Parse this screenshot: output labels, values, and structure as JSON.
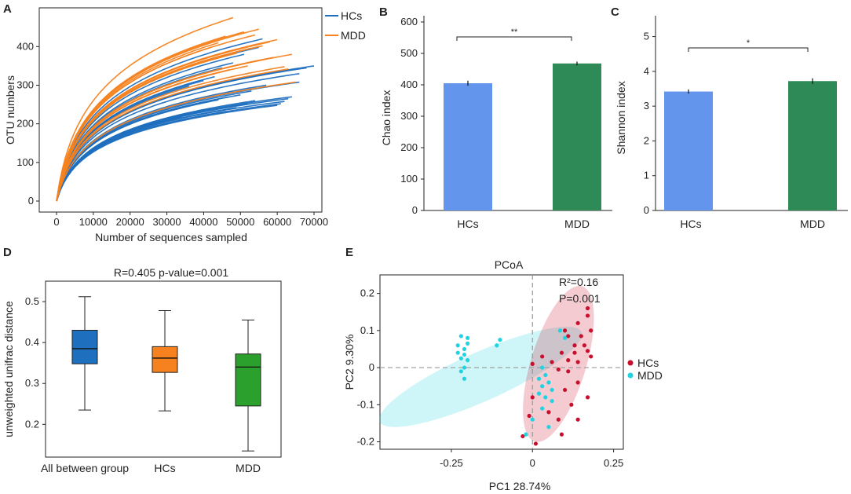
{
  "colors": {
    "hcs_line": "#1f6fbf",
    "mdd_line": "#f5821f",
    "bar_hcs": "#6495ed",
    "bar_mdd": "#2e8b57",
    "box_all": "#1f6fbf",
    "box_hcs": "#f5821f",
    "box_mdd": "#2ca02c",
    "pcoa_hcs": "#c8102e",
    "pcoa_mdd": "#1fd3e0"
  },
  "chart_data": [
    {
      "panel": "A",
      "type": "line",
      "title": "",
      "xlabel": "Number of sequences sampled",
      "ylabel": "OTU numbers",
      "xlim": [
        0,
        70000
      ],
      "ylim": [
        0,
        480
      ],
      "xticks": [
        "0",
        "10000",
        "20000",
        "30000",
        "40000",
        "50000",
        "60000",
        "70000"
      ],
      "yticks": [
        "0",
        "100",
        "200",
        "300",
        "400"
      ],
      "legend": [
        "HCs",
        "MDD"
      ],
      "series": [
        {
          "name": "HCs",
          "curves": [
            {
              "xmax": 70000,
              "ymax": 350
            },
            {
              "xmax": 68000,
              "ymax": 345
            },
            {
              "xmax": 66000,
              "ymax": 330
            },
            {
              "xmax": 66000,
              "ymax": 308
            },
            {
              "xmax": 64000,
              "ymax": 270
            },
            {
              "xmax": 63000,
              "ymax": 265
            },
            {
              "xmax": 62000,
              "ymax": 258
            },
            {
              "xmax": 61000,
              "ymax": 252
            },
            {
              "xmax": 60000,
              "ymax": 248
            },
            {
              "xmax": 58000,
              "ymax": 330
            },
            {
              "xmax": 57000,
              "ymax": 300
            },
            {
              "xmax": 56000,
              "ymax": 420
            },
            {
              "xmax": 55000,
              "ymax": 398
            },
            {
              "xmax": 54000,
              "ymax": 260
            },
            {
              "xmax": 53000,
              "ymax": 285
            },
            {
              "xmax": 52000,
              "ymax": 252
            },
            {
              "xmax": 51000,
              "ymax": 380
            },
            {
              "xmax": 50000,
              "ymax": 275
            },
            {
              "xmax": 49000,
              "ymax": 242
            },
            {
              "xmax": 48000,
              "ymax": 358
            },
            {
              "xmax": 47000,
              "ymax": 270
            },
            {
              "xmax": 46000,
              "ymax": 232
            },
            {
              "xmax": 45000,
              "ymax": 345
            },
            {
              "xmax": 44000,
              "ymax": 262
            },
            {
              "xmax": 43000,
              "ymax": 322
            },
            {
              "xmax": 42000,
              "ymax": 240
            },
            {
              "xmax": 40000,
              "ymax": 312
            },
            {
              "xmax": 38000,
              "ymax": 228
            },
            {
              "xmax": 36000,
              "ymax": 298
            },
            {
              "xmax": 34000,
              "ymax": 218
            }
          ]
        },
        {
          "name": "MDD",
          "curves": [
            {
              "xmax": 65000,
              "ymax": 308
            },
            {
              "xmax": 64000,
              "ymax": 380
            },
            {
              "xmax": 63000,
              "ymax": 342
            },
            {
              "xmax": 62000,
              "ymax": 348
            },
            {
              "xmax": 60000,
              "ymax": 418
            },
            {
              "xmax": 59000,
              "ymax": 372
            },
            {
              "xmax": 58000,
              "ymax": 412
            },
            {
              "xmax": 57000,
              "ymax": 368
            },
            {
              "xmax": 56000,
              "ymax": 402
            },
            {
              "xmax": 55000,
              "ymax": 445
            },
            {
              "xmax": 54000,
              "ymax": 430
            },
            {
              "xmax": 53000,
              "ymax": 396
            },
            {
              "xmax": 52000,
              "ymax": 350
            },
            {
              "xmax": 51000,
              "ymax": 438
            },
            {
              "xmax": 50000,
              "ymax": 395
            },
            {
              "xmax": 49000,
              "ymax": 383
            },
            {
              "xmax": 48000,
              "ymax": 475
            },
            {
              "xmax": 47000,
              "ymax": 340
            },
            {
              "xmax": 46000,
              "ymax": 427
            },
            {
              "xmax": 45000,
              "ymax": 375
            },
            {
              "xmax": 44000,
              "ymax": 410
            },
            {
              "xmax": 43000,
              "ymax": 330
            },
            {
              "xmax": 42000,
              "ymax": 398
            },
            {
              "xmax": 40000,
              "ymax": 362
            },
            {
              "xmax": 38000,
              "ymax": 318
            }
          ]
        }
      ]
    },
    {
      "panel": "B",
      "type": "bar",
      "ylabel": "Chao index",
      "categories": [
        "HCs",
        "MDD"
      ],
      "values": [
        405,
        468
      ],
      "errors": [
        8,
        6
      ],
      "ylim": [
        0,
        620
      ],
      "yticks": [
        "0",
        "100",
        "200",
        "300",
        "400",
        "500",
        "600"
      ],
      "significance": "**"
    },
    {
      "panel": "C",
      "type": "bar",
      "ylabel": "Shannon index",
      "categories": [
        "HCs",
        "MDD"
      ],
      "values": [
        3.42,
        3.72
      ],
      "errors": [
        0.06,
        0.08
      ],
      "ylim": [
        0,
        5.6
      ],
      "yticks": [
        "0",
        "1",
        "2",
        "3",
        "4",
        "5"
      ],
      "significance": "*"
    },
    {
      "panel": "D",
      "type": "box",
      "title": "R=0.405 p-value=0.001",
      "ylabel": "unweighted unifrac distance",
      "categories": [
        "All between group",
        "HCs",
        "MDD"
      ],
      "boxes": [
        {
          "min": 0.235,
          "q1": 0.348,
          "median": 0.385,
          "q3": 0.43,
          "max": 0.512
        },
        {
          "min": 0.233,
          "q1": 0.327,
          "median": 0.362,
          "q3": 0.39,
          "max": 0.478
        },
        {
          "min": 0.135,
          "q1": 0.245,
          "median": 0.34,
          "q3": 0.372,
          "max": 0.455
        }
      ],
      "ylim": [
        0.12,
        0.55
      ],
      "yticks": [
        "0.2",
        "0.3",
        "0.4",
        "0.5"
      ]
    },
    {
      "panel": "E",
      "type": "scatter",
      "title": "PCoA",
      "xlabel": "PC1 28.74%",
      "ylabel": "PC2 9.30%",
      "xlim": [
        -0.47,
        0.28
      ],
      "ylim": [
        -0.22,
        0.25
      ],
      "xticks": [
        "-0.25",
        "0",
        "0.25"
      ],
      "yticks": [
        "-0.2",
        "-0.1",
        "0",
        "0.1",
        "0.2"
      ],
      "annotation": [
        "R²=0.16",
        "P=0.001"
      ],
      "legend": [
        "HCs",
        "MDD"
      ],
      "series": [
        {
          "name": "HCs",
          "points": [
            [
              0.1,
              0.1
            ],
            [
              0.14,
              0.12
            ],
            [
              0.17,
              0.16
            ],
            [
              0.17,
              0.14
            ],
            [
              0.18,
              0.1
            ],
            [
              0.11,
              0.085
            ],
            [
              0.15,
              0.085
            ],
            [
              0.13,
              0.06
            ],
            [
              0.16,
              0.06
            ],
            [
              0.17,
              0.045
            ],
            [
              0.09,
              0.04
            ],
            [
              0.13,
              0.04
            ],
            [
              0.11,
              0.02
            ],
            [
              0.14,
              0.015
            ],
            [
              0.18,
              0.03
            ],
            [
              0.03,
              0.03
            ],
            [
              0.06,
              0.015
            ],
            [
              0.0,
              0.01
            ],
            [
              0.08,
              -0.005
            ],
            [
              0.11,
              -0.01
            ],
            [
              0.14,
              -0.04
            ],
            [
              0.1,
              -0.06
            ],
            [
              0.17,
              -0.08
            ],
            [
              0.12,
              -0.1
            ],
            [
              0.14,
              -0.14
            ],
            [
              0.08,
              -0.14
            ],
            [
              0.0,
              -0.08
            ],
            [
              0.05,
              -0.12
            ],
            [
              0.09,
              -0.18
            ],
            [
              -0.03,
              -0.185
            ],
            [
              0.01,
              -0.205
            ],
            [
              -0.01,
              -0.13
            ]
          ]
        },
        {
          "name": "MDD",
          "points": [
            [
              -0.22,
              0.085
            ],
            [
              -0.2,
              0.08
            ],
            [
              -0.2,
              0.065
            ],
            [
              -0.23,
              0.06
            ],
            [
              -0.21,
              0.05
            ],
            [
              -0.23,
              0.04
            ],
            [
              -0.21,
              0.035
            ],
            [
              -0.22,
              0.025
            ],
            [
              -0.2,
              0.02
            ],
            [
              -0.21,
              0.0
            ],
            [
              -0.22,
              -0.01
            ],
            [
              -0.21,
              -0.03
            ],
            [
              -0.1,
              0.075
            ],
            [
              -0.11,
              0.06
            ],
            [
              0.085,
              0.1
            ],
            [
              0.1,
              0.08
            ],
            [
              0.03,
              0.0
            ],
            [
              0.04,
              -0.02
            ],
            [
              0.02,
              -0.03
            ],
            [
              0.05,
              -0.04
            ],
            [
              0.03,
              -0.05
            ],
            [
              0.06,
              -0.06
            ],
            [
              0.02,
              -0.07
            ],
            [
              0.04,
              -0.08
            ],
            [
              0.06,
              -0.09
            ],
            [
              0.03,
              -0.11
            ],
            [
              0.0,
              -0.14
            ],
            [
              0.05,
              -0.16
            ],
            [
              -0.02,
              -0.18
            ]
          ]
        }
      ]
    }
  ]
}
